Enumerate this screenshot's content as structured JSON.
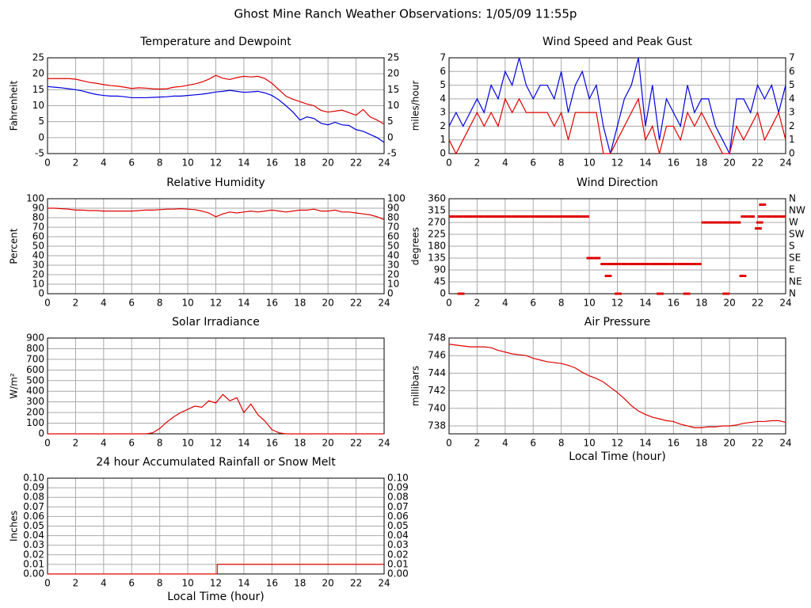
{
  "title": "Ghost Mine Ranch Weather Observations: 1/05/09 11:55p",
  "chart_data": [
    {
      "type": "line",
      "title": "Temperature and Dewpoint",
      "y_label": "Fahrenheit",
      "right_ticks": true,
      "x": [
        0,
        0.5,
        1,
        1.5,
        2,
        2.5,
        3,
        3.5,
        4,
        4.5,
        5,
        5.5,
        6,
        6.5,
        7,
        7.5,
        8,
        8.5,
        9,
        9.5,
        10,
        10.5,
        11,
        11.5,
        12,
        12.5,
        13,
        13.5,
        14,
        14.5,
        15,
        15.5,
        16,
        16.5,
        17,
        17.5,
        18,
        18.5,
        19,
        19.5,
        20,
        20.5,
        21,
        21.5,
        22,
        22.5,
        23,
        23.5,
        24
      ],
      "series": [
        {
          "name": "Temperature",
          "color": "#e00000",
          "values": [
            18.5,
            18.5,
            18.5,
            18.5,
            18.3,
            17.8,
            17.3,
            17,
            16.6,
            16.3,
            16.1,
            15.8,
            15.4,
            15.6,
            15.5,
            15.3,
            15.2,
            15.3,
            15.8,
            16,
            16.4,
            16.8,
            17.4,
            18.3,
            19.5,
            18.6,
            18.2,
            18.8,
            19.2,
            19,
            19.2,
            18.5,
            17,
            15,
            13,
            12,
            11.3,
            10.5,
            10,
            8.5,
            8,
            8.3,
            8.6,
            7.8,
            7,
            8.8,
            6.5,
            5.5,
            4.2
          ]
        },
        {
          "name": "Dewpoint",
          "color": "#0000e0",
          "values": [
            16,
            15.8,
            15.6,
            15.3,
            15,
            14.6,
            14,
            13.5,
            13.2,
            13,
            13,
            12.8,
            12.5,
            12.5,
            12.5,
            12.6,
            12.7,
            12.8,
            13,
            13,
            13.2,
            13.4,
            13.6,
            13.9,
            14.3,
            14.5,
            14.8,
            14.5,
            14.2,
            14.3,
            14.5,
            14,
            13.2,
            11.8,
            10,
            8,
            5.5,
            6.5,
            6,
            4.5,
            4,
            4.8,
            4,
            3.8,
            2.5,
            2,
            1,
            0,
            -1.5
          ]
        }
      ],
      "xlim": [
        0,
        24
      ],
      "xticks": [
        0,
        2,
        4,
        6,
        8,
        10,
        12,
        14,
        16,
        18,
        20,
        22,
        24
      ],
      "ylim": [
        -5,
        25
      ],
      "yticks": [
        -5,
        0,
        5,
        10,
        15,
        20,
        25
      ],
      "grid": true
    },
    {
      "type": "line",
      "title": "Wind Speed and Peak Gust",
      "y_label": "miles/hour",
      "right_ticks": true,
      "x": [
        0,
        0.5,
        1,
        1.5,
        2,
        2.5,
        3,
        3.5,
        4,
        4.5,
        5,
        5.5,
        6,
        6.5,
        7,
        7.5,
        8,
        8.5,
        9,
        9.5,
        10,
        10.5,
        11,
        11.5,
        12,
        12.5,
        13,
        13.5,
        14,
        14.5,
        15,
        15.5,
        16,
        16.5,
        17,
        17.5,
        18,
        18.5,
        19,
        19.5,
        20,
        20.5,
        21,
        21.5,
        22,
        22.5,
        23,
        23.5,
        24
      ],
      "series": [
        {
          "name": "Peak Gust",
          "color": "#0000e0",
          "values": [
            2,
            3,
            2,
            3,
            4,
            3,
            5,
            4,
            6,
            5,
            7,
            5,
            4,
            5,
            5,
            4,
            6,
            3,
            5,
            6,
            4,
            5,
            2,
            0,
            2,
            4,
            5,
            7,
            2,
            5,
            1,
            4,
            3,
            2,
            5,
            3,
            4,
            4,
            2,
            1,
            0,
            4,
            4,
            3,
            5,
            4,
            5,
            3,
            5
          ]
        },
        {
          "name": "Wind Speed",
          "color": "#e00000",
          "values": [
            1,
            0,
            1,
            2,
            3,
            2,
            3,
            2,
            4,
            3,
            4,
            3,
            3,
            3,
            3,
            2,
            3,
            1,
            3,
            3,
            3,
            3,
            0,
            0,
            1,
            2,
            3,
            4,
            1,
            2,
            0,
            2,
            2,
            1,
            3,
            2,
            3,
            2,
            1,
            0,
            0,
            2,
            1,
            2,
            3,
            1,
            2,
            3,
            1
          ]
        }
      ],
      "xlim": [
        0,
        24
      ],
      "xticks": [
        0,
        2,
        4,
        6,
        8,
        10,
        12,
        14,
        16,
        18,
        20,
        22,
        24
      ],
      "ylim": [
        0,
        7
      ],
      "yticks": [
        0,
        1,
        2,
        3,
        4,
        5,
        6,
        7
      ],
      "grid": true
    },
    {
      "type": "line",
      "title": "Relative Humidity",
      "y_label": "Percent",
      "right_ticks": true,
      "x": [
        0,
        0.5,
        1,
        1.5,
        2,
        2.5,
        3,
        3.5,
        4,
        4.5,
        5,
        5.5,
        6,
        6.5,
        7,
        7.5,
        8,
        8.5,
        9,
        9.5,
        10,
        10.5,
        11,
        11.5,
        12,
        12.5,
        13,
        13.5,
        14,
        14.5,
        15,
        15.5,
        16,
        16.5,
        17,
        17.5,
        18,
        18.5,
        19,
        19.5,
        20,
        20.5,
        21,
        21.5,
        22,
        22.5,
        23,
        23.5,
        24
      ],
      "series": [
        {
          "name": "Relative Humidity",
          "color": "#e00000",
          "values": [
            90,
            90,
            89.5,
            89,
            88,
            88,
            87.5,
            87.5,
            87,
            87,
            87,
            87,
            87,
            87.5,
            88,
            88,
            88.5,
            89,
            89,
            89.5,
            89,
            88.5,
            87,
            85,
            81,
            84,
            86,
            85,
            86,
            87,
            86,
            87,
            88,
            87,
            86,
            87,
            88,
            88,
            89,
            87,
            87,
            88,
            86,
            86,
            85,
            84,
            83,
            81,
            78
          ]
        }
      ],
      "xlim": [
        0,
        24
      ],
      "xticks": [
        0,
        2,
        4,
        6,
        8,
        10,
        12,
        14,
        16,
        18,
        20,
        22,
        24
      ],
      "ylim": [
        0,
        100
      ],
      "yticks": [
        0,
        10,
        20,
        30,
        40,
        50,
        60,
        70,
        80,
        90,
        100
      ],
      "grid": true
    },
    {
      "type": "scatter",
      "title": "Wind Direction",
      "y_label": "degrees",
      "x": [
        0,
        0.5,
        1,
        1.5,
        2,
        2.5,
        3,
        3.5,
        4,
        4.5,
        5,
        5.5,
        6,
        6.5,
        7,
        7.5,
        8,
        8.5,
        9,
        9.5,
        0.6,
        9.8,
        10.3,
        10.8,
        11.3,
        11.8,
        12.3,
        12.8,
        13.3,
        13.8,
        14.3,
        14.8,
        15.3,
        15.8,
        16.3,
        16.8,
        17.3,
        17.5,
        11.1,
        11.8,
        14.8,
        16.7,
        19.5,
        18,
        18.5,
        19,
        19.5,
        20,
        20.3,
        20.7,
        20.8,
        21.3,
        21.8,
        21.9,
        22.1,
        22,
        22.5,
        23,
        23.5
      ],
      "series": [
        {
          "name": "Wind Direction",
          "color": "#e00000",
          "values": [
            292.5,
            292.5,
            292.5,
            292.5,
            292.5,
            292.5,
            292.5,
            292.5,
            292.5,
            292.5,
            292.5,
            292.5,
            292.5,
            292.5,
            292.5,
            292.5,
            292.5,
            292.5,
            292.5,
            292.5,
            0,
            135,
            135,
            112.5,
            112.5,
            112.5,
            112.5,
            112.5,
            112.5,
            112.5,
            112.5,
            112.5,
            112.5,
            112.5,
            112.5,
            112.5,
            112.5,
            112.5,
            67.5,
            0,
            0,
            0,
            0,
            270,
            270,
            270,
            270,
            270,
            270,
            67.5,
            292.5,
            292.5,
            247.5,
            270,
            337.5,
            292.5,
            292.5,
            292.5,
            292.5
          ]
        }
      ],
      "xlim": [
        0,
        24
      ],
      "xticks": [
        0,
        2,
        4,
        6,
        8,
        10,
        12,
        14,
        16,
        18,
        20,
        22,
        24
      ],
      "ylim": [
        0,
        360
      ],
      "yticks": [
        0,
        45,
        90,
        135,
        180,
        225,
        270,
        315,
        360
      ],
      "y2lim": [
        0,
        360
      ],
      "y2ticks": [
        {
          "value": 0,
          "label": "N"
        },
        {
          "value": 45,
          "label": "NE"
        },
        {
          "value": 90,
          "label": "E"
        },
        {
          "value": 135,
          "label": "SE"
        },
        {
          "value": 180,
          "label": "S"
        },
        {
          "value": 225,
          "label": "SW"
        },
        {
          "value": 270,
          "label": "W"
        },
        {
          "value": 315,
          "label": "NW"
        },
        {
          "value": 360,
          "label": "N"
        }
      ],
      "grid": true
    },
    {
      "type": "line",
      "title": "Solar Irradiance",
      "y_label": "W/m²",
      "x": [
        0,
        0.5,
        1,
        1.5,
        2,
        2.5,
        3,
        3.5,
        4,
        4.5,
        5,
        5.5,
        6,
        6.5,
        7,
        7.5,
        8,
        8.5,
        9,
        9.5,
        10,
        10.5,
        11,
        11.5,
        12,
        12.5,
        13,
        13.5,
        14,
        14.5,
        15,
        15.5,
        16,
        16.5,
        17,
        17.5,
        18,
        18.5,
        19,
        19.5,
        20,
        20.5,
        21,
        21.5,
        22,
        22.5,
        23,
        23.5,
        24
      ],
      "series": [
        {
          "name": "Solar Irradiance",
          "color": "#e00000",
          "values": [
            0,
            0,
            0,
            0,
            0,
            0,
            0,
            0,
            0,
            0,
            0,
            0,
            0,
            0,
            0,
            10,
            50,
            110,
            160,
            200,
            230,
            260,
            250,
            310,
            290,
            370,
            310,
            340,
            200,
            280,
            180,
            120,
            40,
            10,
            0,
            0,
            0,
            0,
            0,
            0,
            0,
            0,
            0,
            0,
            0,
            0,
            0,
            0,
            0
          ]
        }
      ],
      "xlim": [
        0,
        24
      ],
      "xticks": [
        0,
        2,
        4,
        6,
        8,
        10,
        12,
        14,
        16,
        18,
        20,
        22,
        24
      ],
      "ylim": [
        0,
        900
      ],
      "yticks": [
        0,
        100,
        200,
        300,
        400,
        500,
        600,
        700,
        800,
        900
      ],
      "grid": true
    },
    {
      "type": "line",
      "title": "Air Pressure",
      "y_label": "millibars",
      "x_label": "Local Time (hour)",
      "x": [
        0,
        0.5,
        1,
        1.5,
        2,
        2.5,
        3,
        3.5,
        4,
        4.5,
        5,
        5.5,
        6,
        6.5,
        7,
        7.5,
        8,
        8.5,
        9,
        9.5,
        10,
        10.5,
        11,
        11.5,
        12,
        12.5,
        13,
        13.5,
        14,
        14.5,
        15,
        15.5,
        16,
        16.5,
        17,
        17.5,
        18,
        18.5,
        19,
        19.5,
        20,
        20.5,
        21,
        21.5,
        22,
        22.5,
        23,
        23.5,
        24
      ],
      "series": [
        {
          "name": "Air Pressure",
          "color": "#e00000",
          "values": [
            747.3,
            747.2,
            747.1,
            747,
            747,
            747,
            746.9,
            746.6,
            746.4,
            746.2,
            746.1,
            746,
            745.7,
            745.5,
            745.3,
            745.2,
            745.1,
            744.9,
            744.6,
            744.1,
            743.7,
            743.4,
            743,
            742.4,
            741.8,
            741.1,
            740.3,
            739.7,
            739.3,
            739,
            738.8,
            738.6,
            738.5,
            738.2,
            738,
            737.8,
            737.8,
            737.9,
            737.9,
            738,
            738,
            738.1,
            738.3,
            738.4,
            738.5,
            738.5,
            738.6,
            738.6,
            738.4
          ]
        }
      ],
      "xlim": [
        0,
        24
      ],
      "xticks": [
        0,
        2,
        4,
        6,
        8,
        10,
        12,
        14,
        16,
        18,
        20,
        22,
        24
      ],
      "ylim": [
        737.1,
        748
      ],
      "yticks": [
        738,
        740,
        742,
        744,
        746,
        748
      ],
      "grid": true
    },
    {
      "type": "line",
      "title": "24 hour Accumulated Rainfall or Snow Melt",
      "y_label": "Inches",
      "x_label": "Local Time (hour)",
      "right_ticks": true,
      "x": [
        0,
        12.1,
        12.1,
        24
      ],
      "series": [
        {
          "name": "Rainfall",
          "color": "#e00000",
          "values": [
            0,
            0,
            0.01,
            0.01
          ]
        }
      ],
      "xlim": [
        0,
        24
      ],
      "xticks": [
        0,
        2,
        4,
        6,
        8,
        10,
        12,
        14,
        16,
        18,
        20,
        22,
        24
      ],
      "ylim": [
        0,
        0.1
      ],
      "yticks": [
        {
          "value": 0,
          "label": "0.00"
        },
        {
          "value": 0.01,
          "label": "0.01"
        },
        {
          "value": 0.02,
          "label": "0.02"
        },
        {
          "value": 0.03,
          "label": "0.03"
        },
        {
          "value": 0.04,
          "label": "0.04"
        },
        {
          "value": 0.05,
          "label": "0.05"
        },
        {
          "value": 0.06,
          "label": "0.06"
        },
        {
          "value": 0.07,
          "label": "0.07"
        },
        {
          "value": 0.08,
          "label": "0.08"
        },
        {
          "value": 0.09,
          "label": "0.09"
        },
        {
          "value": 0.1,
          "label": "0.10"
        }
      ],
      "grid": true
    }
  ]
}
